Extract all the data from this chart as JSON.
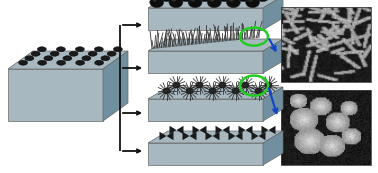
{
  "bg_color": "#ffffff",
  "plate_color_top": "#a8b8c0",
  "plate_color_side": "#7090a0",
  "figsize": [
    3.78,
    1.73
  ],
  "dpi": 100,
  "arrow_color": "#111111",
  "blue_arrow_color": "#1144cc",
  "green_circle_color": "#22cc22"
}
